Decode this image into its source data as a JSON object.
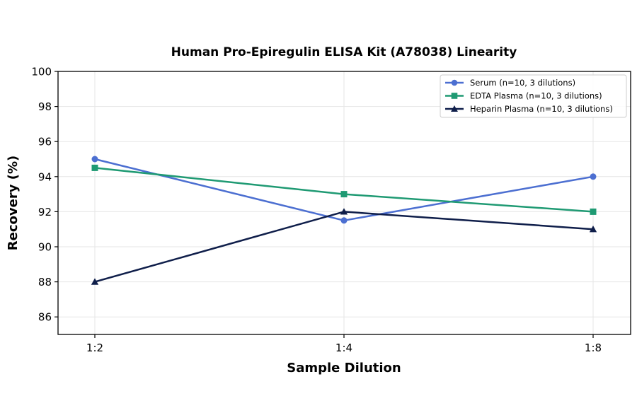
{
  "chart_data": {
    "type": "line",
    "title": "Human Pro-Epiregulin ELISA Kit (A78038) Linearity",
    "xlabel": "Sample Dilution",
    "ylabel": "Recovery (%)",
    "categories": [
      "1:2",
      "1:4",
      "1:8"
    ],
    "ylim": [
      85,
      100
    ],
    "yticks": [
      86,
      88,
      90,
      92,
      94,
      96,
      98,
      100
    ],
    "grid": true,
    "legend_position": "top-right",
    "series": [
      {
        "name": "Serum (n=10, 3 dilutions)",
        "values": [
          95.0,
          91.5,
          94.0
        ],
        "color": "#4c6fd1",
        "marker": "circle"
      },
      {
        "name": "EDTA Plasma (n=10, 3 dilutions)",
        "values": [
          94.5,
          93.0,
          92.0
        ],
        "color": "#1f9a73",
        "marker": "square"
      },
      {
        "name": "Heparin Plasma (n=10, 3 dilutions)",
        "values": [
          88.0,
          92.0,
          91.0
        ],
        "color": "#0f1e4a",
        "marker": "triangle"
      }
    ]
  }
}
